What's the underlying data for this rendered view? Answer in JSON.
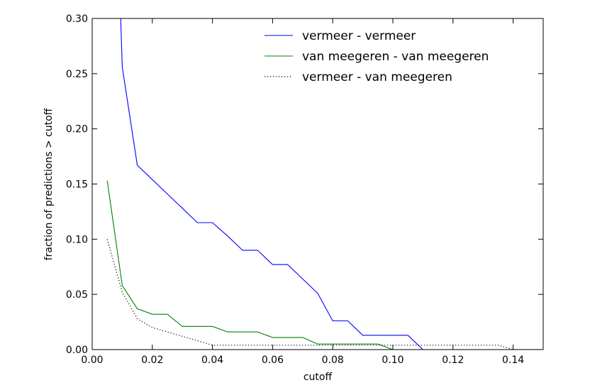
{
  "chart_data": {
    "type": "line",
    "title": "",
    "xlabel": "cutoff",
    "ylabel": "fraction of predictions > cutoff",
    "xlim": [
      0.0,
      0.15
    ],
    "ylim": [
      0.0,
      0.3
    ],
    "xticks": [
      0.0,
      0.02,
      0.04,
      0.06,
      0.08,
      0.1,
      0.12,
      0.14
    ],
    "xtick_labels": [
      "0.00",
      "0.02",
      "0.04",
      "0.06",
      "0.08",
      "0.10",
      "0.12",
      "0.14"
    ],
    "yticks": [
      0.0,
      0.05,
      0.1,
      0.15,
      0.2,
      0.25,
      0.3
    ],
    "ytick_labels": [
      "0.00",
      "0.05",
      "0.10",
      "0.15",
      "0.20",
      "0.25",
      "0.30"
    ],
    "grid": false,
    "legend_position": "top-right",
    "series": [
      {
        "name": "vermeer - vermeer",
        "color": "#0000ff",
        "style": "solid",
        "x": [
          0.009,
          0.01,
          0.015,
          0.02,
          0.025,
          0.03,
          0.035,
          0.04,
          0.045,
          0.05,
          0.055,
          0.06,
          0.065,
          0.07,
          0.075,
          0.08,
          0.085,
          0.09,
          0.095,
          0.1,
          0.105,
          0.11,
          0.115,
          0.12,
          0.125,
          0.13,
          0.135,
          0.14,
          0.145,
          0.15
        ],
        "y": [
          0.34,
          0.256,
          0.167,
          0.154,
          0.141,
          0.128,
          0.115,
          0.115,
          0.103,
          0.09,
          0.09,
          0.077,
          0.077,
          0.064,
          0.051,
          0.026,
          0.026,
          0.013,
          0.013,
          0.013,
          0.013,
          0.0,
          0.0,
          0.0,
          0.0,
          0.0,
          0.0,
          0.0,
          0.0,
          0.0
        ]
      },
      {
        "name": "van meegeren - van meegeren",
        "color": "#008000",
        "style": "solid",
        "x": [
          0.005,
          0.01,
          0.015,
          0.02,
          0.025,
          0.03,
          0.035,
          0.04,
          0.045,
          0.05,
          0.055,
          0.06,
          0.065,
          0.07,
          0.075,
          0.08,
          0.085,
          0.09,
          0.095,
          0.1,
          0.105,
          0.11,
          0.115,
          0.12,
          0.125,
          0.13,
          0.135,
          0.14,
          0.145,
          0.15
        ],
        "y": [
          0.153,
          0.058,
          0.037,
          0.032,
          0.032,
          0.021,
          0.021,
          0.021,
          0.016,
          0.016,
          0.016,
          0.011,
          0.011,
          0.011,
          0.005,
          0.005,
          0.005,
          0.005,
          0.005,
          0.0,
          0.0,
          0.0,
          0.0,
          0.0,
          0.0,
          0.0,
          0.0,
          0.0,
          0.0,
          0.0
        ]
      },
      {
        "name": "vermeer - van meegeren",
        "color": "#000000",
        "style": "dotted",
        "x": [
          0.005,
          0.01,
          0.015,
          0.02,
          0.025,
          0.03,
          0.035,
          0.04,
          0.045,
          0.05,
          0.055,
          0.06,
          0.065,
          0.07,
          0.075,
          0.08,
          0.085,
          0.09,
          0.095,
          0.1,
          0.105,
          0.11,
          0.115,
          0.12,
          0.125,
          0.13,
          0.135,
          0.14,
          0.145,
          0.15
        ],
        "y": [
          0.1,
          0.052,
          0.028,
          0.02,
          0.016,
          0.012,
          0.008,
          0.004,
          0.004,
          0.004,
          0.004,
          0.004,
          0.004,
          0.004,
          0.004,
          0.004,
          0.004,
          0.004,
          0.004,
          0.004,
          0.004,
          0.004,
          0.004,
          0.004,
          0.004,
          0.004,
          0.004,
          0.0,
          0.0,
          0.0
        ]
      }
    ]
  }
}
